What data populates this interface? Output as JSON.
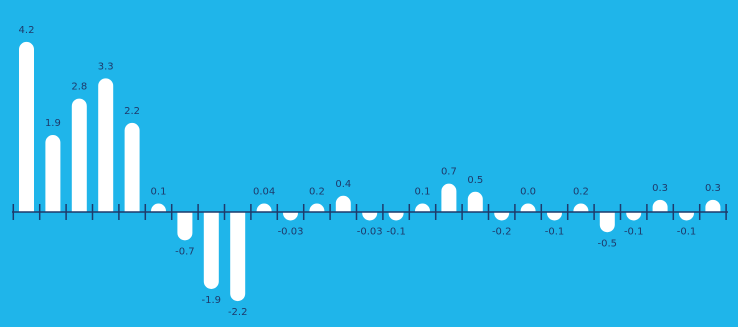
{
  "colors": {
    "background": "#1fb5ea",
    "bar": "#ffffff",
    "axis": "#1f3a6b",
    "label": "#1f3a6b"
  },
  "chart_data": {
    "type": "bar",
    "categories": [
      "",
      "",
      "",
      "",
      "",
      "",
      "",
      "",
      "",
      "",
      "",
      "",
      "",
      "",
      "",
      "",
      "",
      "",
      "",
      "",
      "",
      "",
      "",
      "",
      "",
      "",
      ""
    ],
    "values": [
      4.2,
      1.9,
      2.8,
      3.3,
      2.2,
      0.1,
      -0.7,
      -1.9,
      -2.2,
      0.04,
      -0.03,
      0.2,
      0.4,
      -0.03,
      -0.1,
      0.1,
      0.7,
      0.5,
      -0.2,
      0.0,
      -0.1,
      0.2,
      -0.5,
      -0.1,
      0.3,
      -0.1,
      0.3
    ],
    "labels": [
      "4.2",
      "1.9",
      "2.8",
      "3.3",
      "2.2",
      "0.1",
      "-0.7",
      "-1.9",
      "-2.2",
      "0.04",
      "-0.03",
      "0.2",
      "0.4",
      "-0.03",
      "-0.1",
      "0.1",
      "0.7",
      "0.5",
      "-0.2",
      "0.0",
      "-0.1",
      "0.2",
      "-0.5",
      "-0.1",
      "0.3",
      "-0.1",
      "0.3"
    ],
    "title": "",
    "xlabel": "",
    "ylabel": "",
    "grid": false,
    "legend": "none"
  }
}
